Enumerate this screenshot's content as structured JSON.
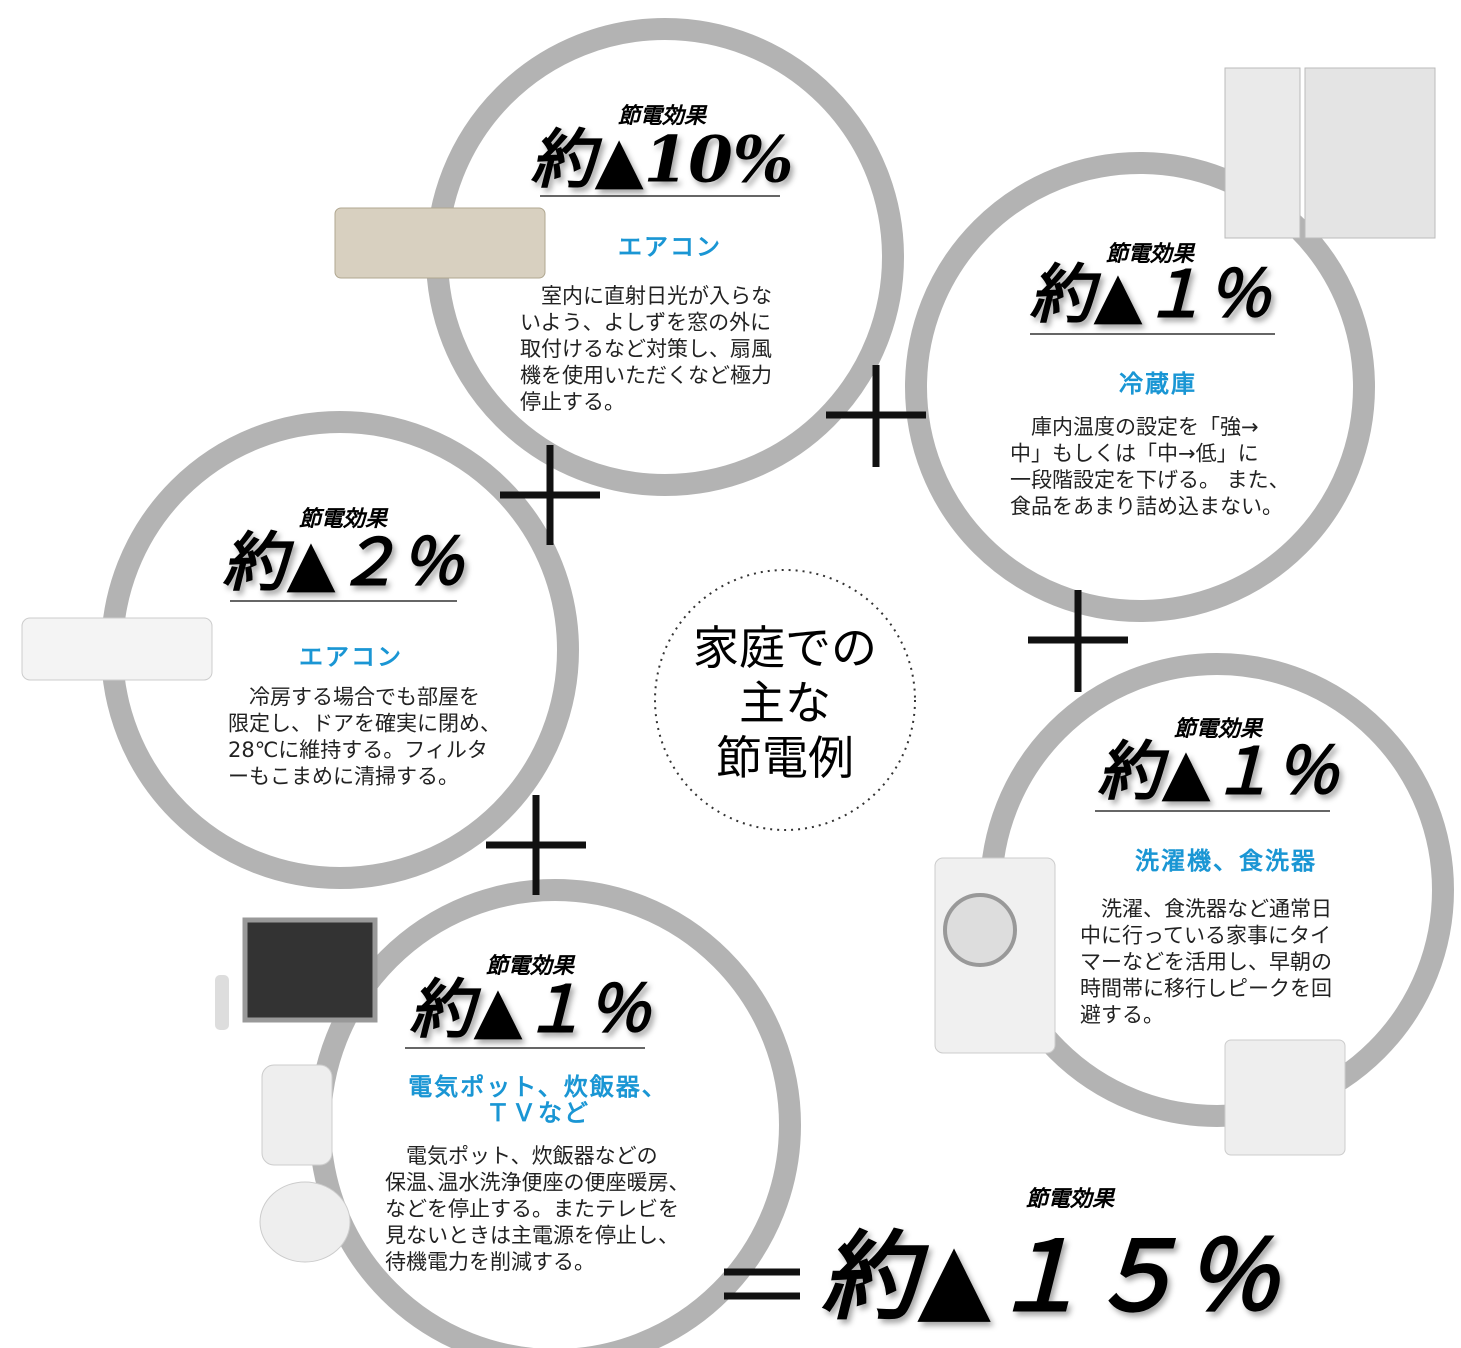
{
  "center": {
    "lines": [
      "家庭での",
      "主な",
      "節電例"
    ]
  },
  "cards": [
    {
      "effect_label": "節電効果",
      "effect": "約▲10%",
      "category": [
        "エアコン"
      ],
      "description": [
        "　室内に直射日光が入らな",
        "いよう、よしずを窓の外に",
        "取付けるなど対策し、扇風",
        "機を使用いただくなど極力",
        "停止する。"
      ]
    },
    {
      "effect_label": "節電効果",
      "effect": "約▲１％",
      "category": [
        "冷蔵庫"
      ],
      "description": [
        "　庫内温度の設定を「強→",
        "中」もしくは「中→低」に",
        "一段階設定を下げる。 また、",
        "食品をあまり詰め込まない。"
      ]
    },
    {
      "effect_label": "節電効果",
      "effect": "約▲２％",
      "category": [
        "エアコン"
      ],
      "description": [
        "　冷房する場合でも部屋を",
        "限定し、ドアを確実に閉め、",
        "28℃に維持する。フィルタ",
        "ーもこまめに清掃する。"
      ]
    },
    {
      "effect_label": "節電効果",
      "effect": "約▲１％",
      "category": [
        "洗濯機、食洗器"
      ],
      "description": [
        "　洗濯、食洗器など通常日",
        "中に行っている家事にタイ",
        "マーなどを活用し、早朝の",
        "時間帯に移行しピークを回",
        "避する。"
      ]
    },
    {
      "effect_label": "節電効果",
      "effect": "約▲１％",
      "category": [
        "電気ポット、炊飯器、",
        "ＴＶなど"
      ],
      "description": [
        "　電気ポット、炊飯器などの",
        "保温､温水洗浄便座の便座暖房、",
        "などを停止する。またテレビを",
        "見ないときは主電源を停止し、",
        "待機電力を削減する。"
      ]
    }
  ],
  "total": {
    "effect_label": "節電効果",
    "effect": "約▲１５％"
  }
}
